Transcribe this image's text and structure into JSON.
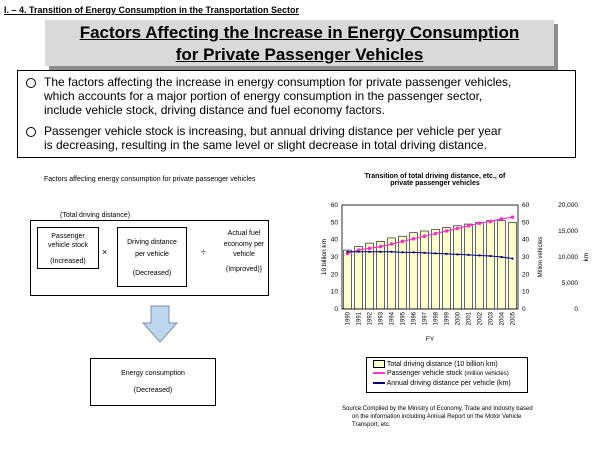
{
  "section_header": "I. – 4. Transition of Energy Consumption in the Transportation Sector",
  "title_line1": "Factors Affecting the Increase in Energy Consumption",
  "title_line2": "for Private Passenger Vehicles",
  "bullets": [
    {
      "lines": [
        "The factors affecting the increase in energy consumption for private passenger vehicles,",
        "which accounts for a major portion of energy consumption in the passenger sector,",
        "include vehicle stock, driving distance and fuel economy factors."
      ]
    },
    {
      "lines": [
        "Passenger vehicle stock is increasing, but annual driving distance per vehicle per year",
        "is decreasing, resulting in the same level or slight decrease in total driving distance."
      ]
    }
  ],
  "diagram": {
    "heading": "Factors affecting energy consumption for private passenger vehicles",
    "total_label": "(Total driving distance)",
    "stock": [
      "Passenger",
      "vehicle stock",
      "(Increased)"
    ],
    "times": "×",
    "distance": [
      "Driving distance",
      "per vehicle",
      "(Decreased)"
    ],
    "divide": "÷",
    "fuel": [
      "Actual fuel",
      "economy per",
      "vehicle",
      "(Improved)}"
    ],
    "result": [
      "Energy consumption",
      "(Decreased)"
    ]
  },
  "chart_data": {
    "type": "bar",
    "title": [
      "Transition of total driving distance, etc., of",
      "private passenger vehicles"
    ],
    "xlabel": "FY",
    "ylabel_left": "10 billion km",
    "ylabel_right": "Million vehicles",
    "ylabel_right2": "km",
    "categories": [
      "1990",
      "1991",
      "1992",
      "1993",
      "1994",
      "1995",
      "1996",
      "1997",
      "1998",
      "1999",
      "2000",
      "2001",
      "2002",
      "2003",
      "2004",
      "2005"
    ],
    "left_ticks": [
      "0",
      "10",
      "20",
      "30",
      "40",
      "50",
      "60"
    ],
    "right_ticks": [
      "0",
      "10",
      "20",
      "30",
      "40",
      "50",
      "60"
    ],
    "right2_ticks": [
      "0",
      "5,000",
      "10,000",
      "15,000",
      "20,000"
    ],
    "ylim_left": [
      0,
      60
    ],
    "ylim_right": [
      0,
      60
    ],
    "ylim_right2": [
      0,
      20000
    ],
    "series": [
      {
        "name": "Total driving distance (10 billion km)",
        "axis": "left",
        "kind": "bar",
        "values": [
          34,
          36,
          38,
          39,
          41,
          42,
          44,
          45,
          46,
          47,
          48,
          49,
          50,
          51,
          51,
          50
        ]
      },
      {
        "name": "Passenger vehicle stock",
        "name_suffix": "(million vehicles)",
        "axis": "right",
        "kind": "line",
        "values": [
          32,
          34,
          35,
          36,
          37.5,
          39,
          40.5,
          42,
          43.5,
          45,
          46.5,
          48,
          49.5,
          50.5,
          52,
          53
        ],
        "color": "#ff33cc"
      },
      {
        "name": "Annual driving distance per vehicle (km)",
        "axis": "right2",
        "kind": "line",
        "values": [
          11000,
          11000,
          11000,
          11000,
          11000,
          10900,
          10900,
          10800,
          10700,
          10600,
          10500,
          10400,
          10300,
          10200,
          10000,
          9700
        ],
        "color": "#000080"
      }
    ],
    "bar_color": "#ffffcc"
  },
  "source": [
    "Source:Compiled by the Ministry of Economy, Trade and Industry based",
    "on the information including Annual Report on the Motor Vehicle",
    "Transport, etc."
  ]
}
